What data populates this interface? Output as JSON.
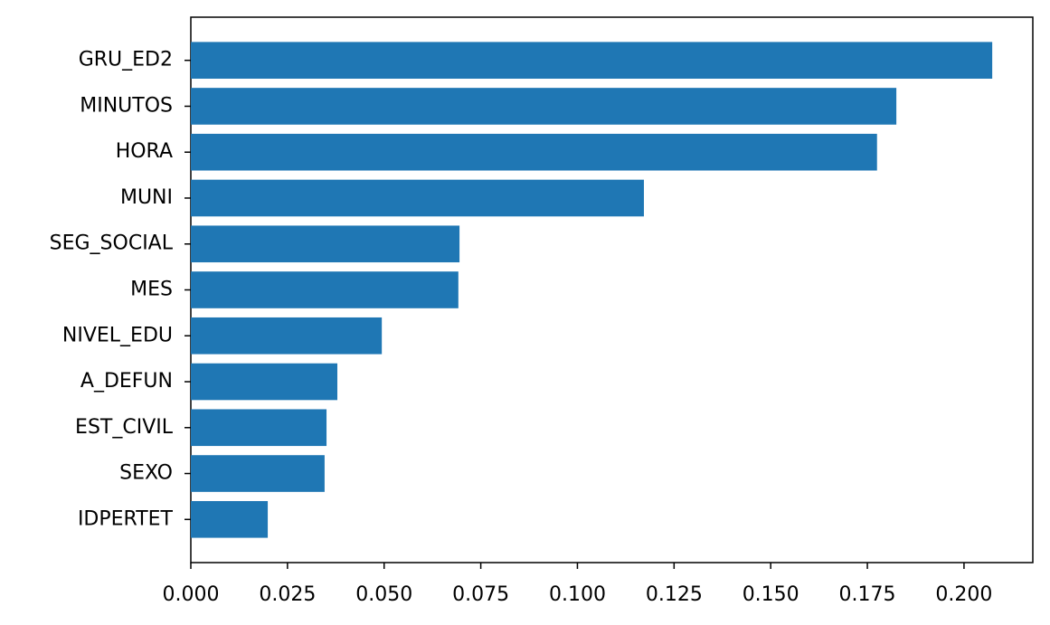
{
  "chart_data": {
    "type": "barh",
    "categories": [
      "GRU_ED2",
      "MINUTOS",
      "HORA",
      "MUNI",
      "SEG_SOCIAL",
      "MES",
      "NIVEL_EDU",
      "A_DEFUN",
      "EST_CIVIL",
      "SEXO",
      "IDPERTET"
    ],
    "values": [
      0.2073,
      0.1825,
      0.1775,
      0.1172,
      0.0695,
      0.0692,
      0.0494,
      0.0379,
      0.0351,
      0.0346,
      0.0199
    ],
    "color": "#1f77b4",
    "xlim": [
      0,
      0.2178
    ],
    "xticks": [
      {
        "value": 0,
        "label": "0.000"
      },
      {
        "value": 0.025,
        "label": "0.025"
      },
      {
        "value": 0.05,
        "label": "0.050"
      },
      {
        "value": 0.075,
        "label": "0.075"
      },
      {
        "value": 0.1,
        "label": "0.100"
      },
      {
        "value": 0.125,
        "label": "0.125"
      },
      {
        "value": 0.15,
        "label": "0.150"
      },
      {
        "value": 0.175,
        "label": "0.175"
      },
      {
        "value": 0.2,
        "label": "0.200"
      }
    ],
    "grid": false
  }
}
